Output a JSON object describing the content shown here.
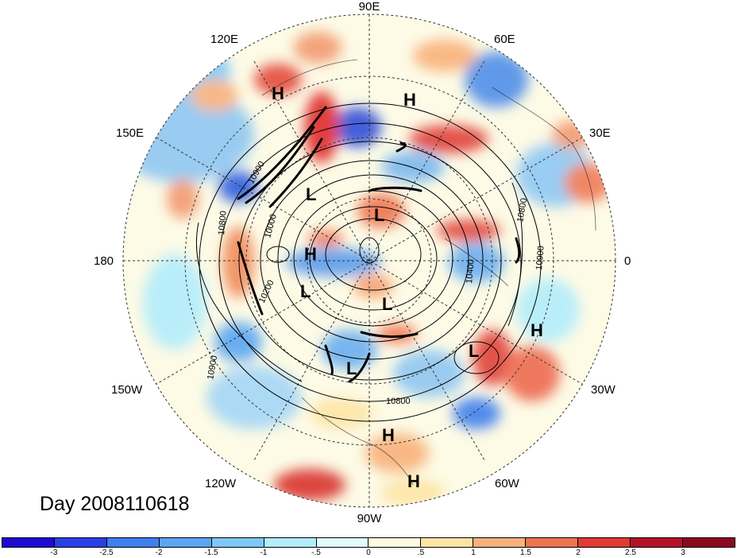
{
  "title": "Day 2008110618",
  "lon_labels": {
    "e90": "90E",
    "e120": "120E",
    "e60": "60E",
    "e150": "150E",
    "e30": "30E",
    "d180": "180",
    "d0": "0",
    "w150": "150W",
    "w30": "30W",
    "w120": "120W",
    "w60": "60W",
    "w90": "90W"
  },
  "contour_labels": [
    "10900",
    "10800",
    "10000",
    "10200",
    "10900",
    "10800",
    "10400",
    "10900",
    "10800"
  ],
  "pressure_centers": {
    "highs": [
      "H",
      "H",
      "H",
      "H",
      "H",
      "H"
    ],
    "lows": [
      "L",
      "L",
      "L",
      "L",
      "L",
      "L"
    ]
  },
  "colorbar": {
    "ticks": [
      "-3",
      "-2.5",
      "-2",
      "-1.5",
      "-1",
      "-.5",
      "0",
      ".5",
      "1",
      "1.5",
      "2",
      "2.5",
      "3"
    ],
    "colors": [
      "#1e0ad2",
      "#2b3fe6",
      "#3f7fee",
      "#5aa6f2",
      "#7ec8f7",
      "#b2ecfb",
      "#e2fbff",
      "#fffbe0",
      "#fde4a6",
      "#f8b17a",
      "#ef7550",
      "#e03a32",
      "#b5122a",
      "#8a0a20"
    ]
  }
}
